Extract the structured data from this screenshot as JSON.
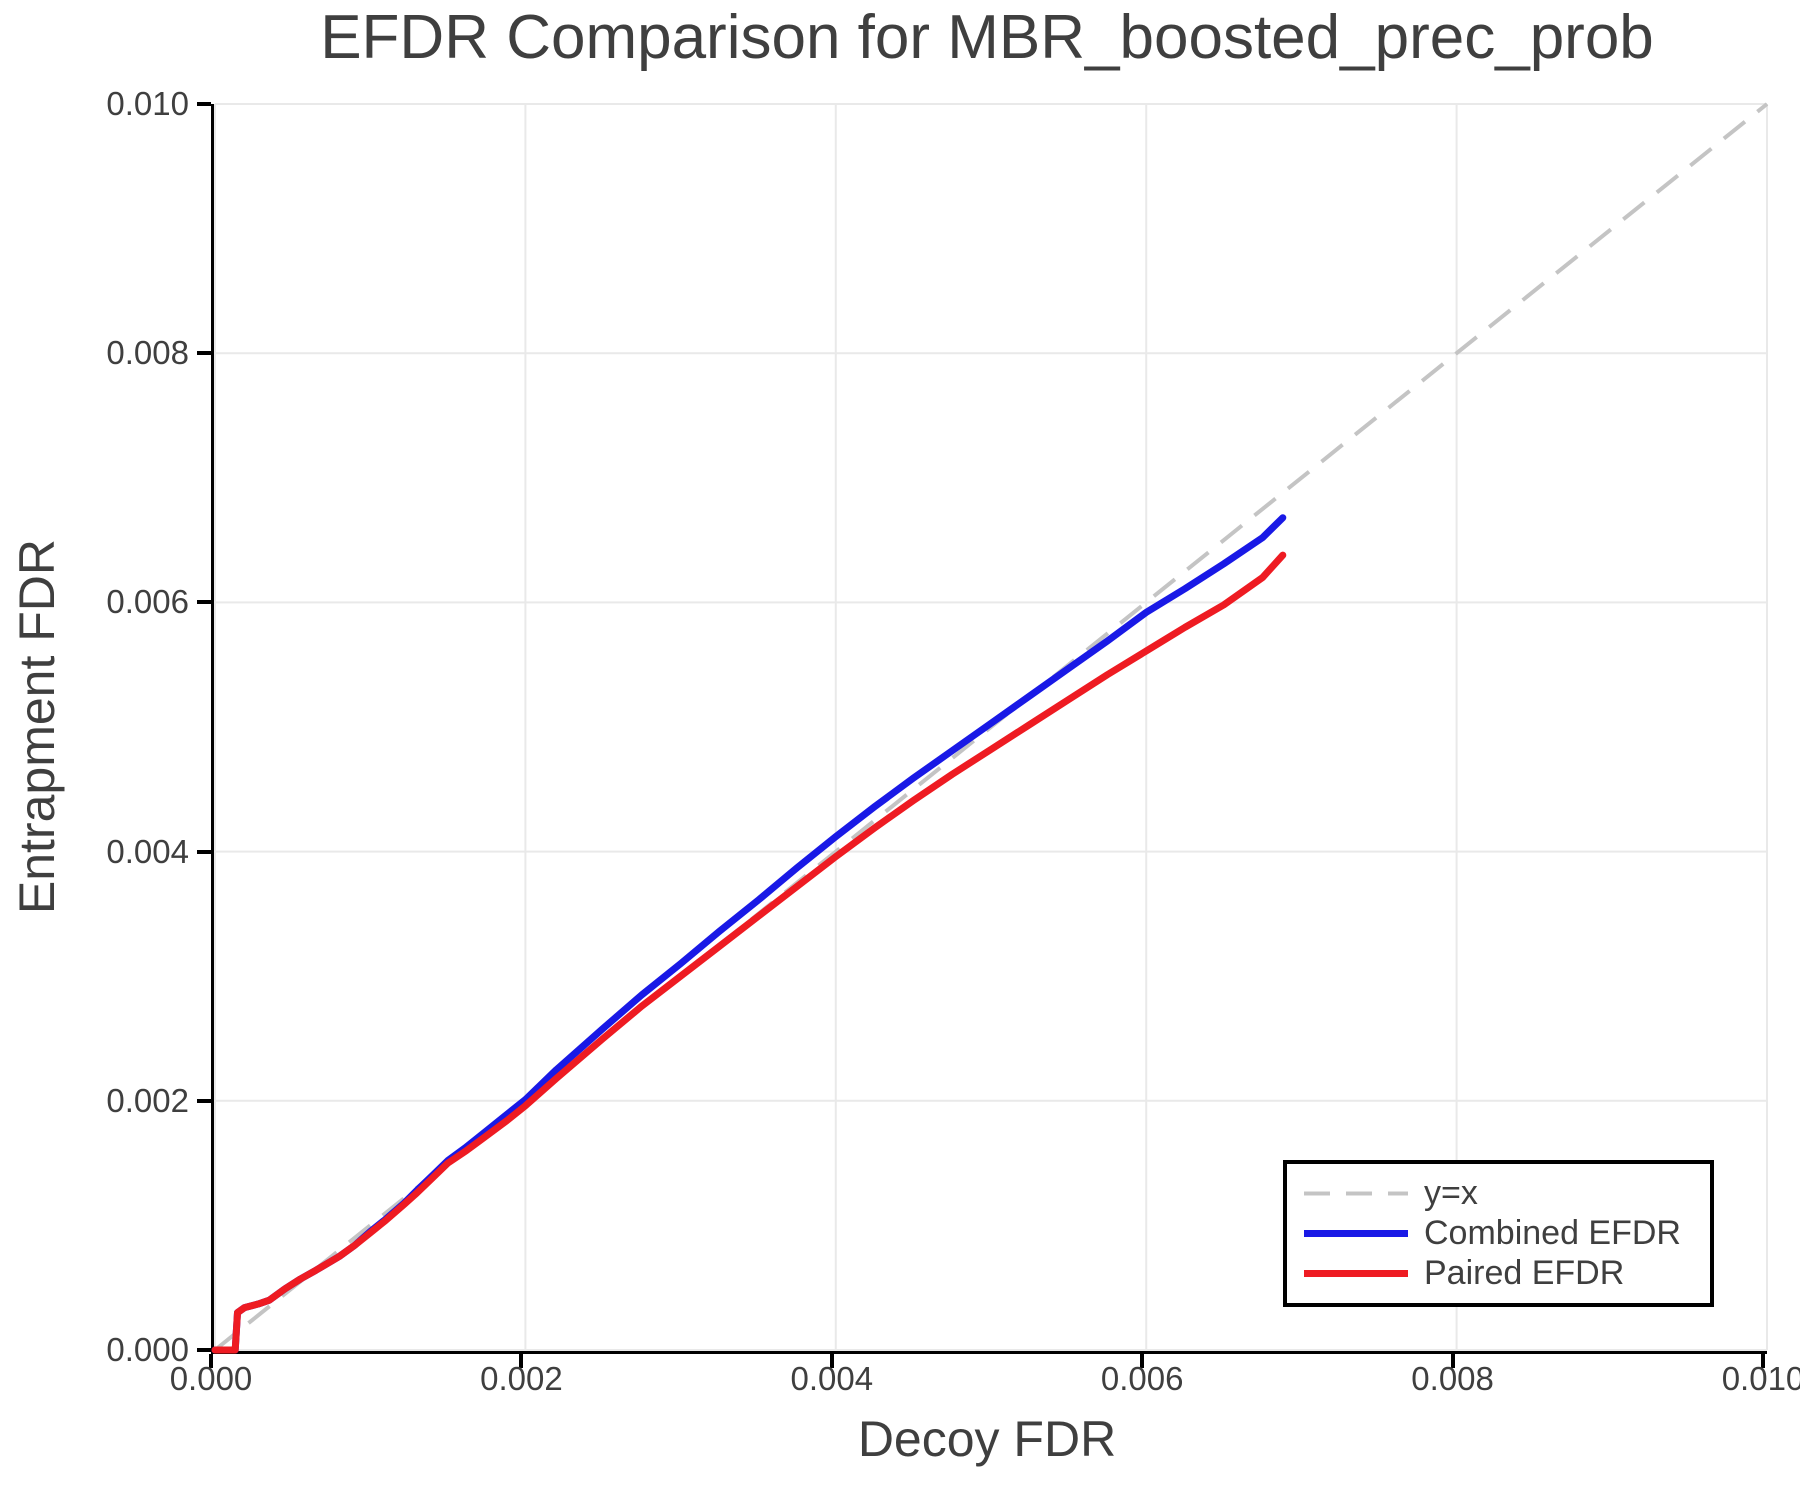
{
  "title": "EFDR Comparison for MBR_boosted_prec_prob",
  "axes": {
    "xlabel": "Decoy FDR",
    "ylabel": "Entrapment FDR",
    "xlim": [
      0.0,
      0.01
    ],
    "ylim": [
      0.0,
      0.01
    ],
    "xticks": [
      0.0,
      0.002,
      0.004,
      0.006,
      0.008,
      0.01
    ],
    "yticks": [
      0.0,
      0.002,
      0.004,
      0.006,
      0.008,
      0.01
    ],
    "xtick_labels": [
      "0.000",
      "0.002",
      "0.004",
      "0.006",
      "0.008",
      "0.010"
    ],
    "ytick_labels": [
      "0.000",
      "0.002",
      "0.004",
      "0.006",
      "0.008",
      "0.010"
    ],
    "grid": true,
    "grid_color": "#e9e9e9",
    "spine_color": "#000000"
  },
  "legend": {
    "position": "lower right",
    "items": [
      {
        "label": "y=x",
        "color": "#c4c4c4",
        "dashed": true
      },
      {
        "label": "Combined EFDR",
        "color": "#1919e6",
        "dashed": false
      },
      {
        "label": "Paired EFDR",
        "color": "#ee1b22",
        "dashed": false
      }
    ]
  },
  "chart_data": {
    "type": "line",
    "title": "EFDR Comparison for MBR_boosted_prec_prob",
    "xlabel": "Decoy FDR",
    "ylabel": "Entrapment FDR",
    "xlim": [
      0.0,
      0.01
    ],
    "ylim": [
      0.0,
      0.01
    ],
    "legend_position": "lower right",
    "grid": true,
    "reference_line": {
      "name": "y=x",
      "from": [
        0.0,
        0.0
      ],
      "to": [
        0.01,
        0.01
      ],
      "style": "dashed",
      "color": "#c4c4c4"
    },
    "series": [
      {
        "name": "Combined EFDR",
        "color": "#1919e6",
        "points": [
          [
            0.0,
            0.0
          ],
          [
            0.00013,
            0.0
          ],
          [
            0.000145,
            0.0003
          ],
          [
            0.00019,
            0.00034
          ],
          [
            0.00028,
            0.00037
          ],
          [
            0.00035,
            0.0004
          ],
          [
            0.00045,
            0.00049
          ],
          [
            0.00055,
            0.00057
          ],
          [
            0.00065,
            0.00064
          ],
          [
            0.0008,
            0.00075
          ],
          [
            0.0009,
            0.00084
          ],
          [
            0.001,
            0.00095
          ],
          [
            0.0011,
            0.00105
          ],
          [
            0.00122,
            0.00118
          ],
          [
            0.0013,
            0.00128
          ],
          [
            0.0014,
            0.0014
          ],
          [
            0.0015,
            0.00152
          ],
          [
            0.00162,
            0.00163
          ],
          [
            0.00175,
            0.00176
          ],
          [
            0.00188,
            0.00189
          ],
          [
            0.002,
            0.00201
          ],
          [
            0.0022,
            0.00225
          ],
          [
            0.0025,
            0.00258
          ],
          [
            0.00275,
            0.00285
          ],
          [
            0.003,
            0.0031
          ],
          [
            0.00325,
            0.00336
          ],
          [
            0.0035,
            0.00361
          ],
          [
            0.00375,
            0.00387
          ],
          [
            0.004,
            0.00412
          ],
          [
            0.00425,
            0.00436
          ],
          [
            0.0045,
            0.00459
          ],
          [
            0.00475,
            0.00481
          ],
          [
            0.005,
            0.00503
          ],
          [
            0.00525,
            0.00525
          ],
          [
            0.0055,
            0.00547
          ],
          [
            0.00575,
            0.00569
          ],
          [
            0.006,
            0.00592
          ],
          [
            0.00625,
            0.00611
          ],
          [
            0.0065,
            0.00631
          ],
          [
            0.00675,
            0.00652
          ],
          [
            0.00688,
            0.00668
          ]
        ]
      },
      {
        "name": "Paired EFDR",
        "color": "#ee1b22",
        "points": [
          [
            0.0,
            0.0
          ],
          [
            0.00013,
            0.0
          ],
          [
            0.000145,
            0.0003
          ],
          [
            0.00019,
            0.00034
          ],
          [
            0.00028,
            0.00037
          ],
          [
            0.00035,
            0.0004
          ],
          [
            0.00045,
            0.00049
          ],
          [
            0.00055,
            0.00057
          ],
          [
            0.00065,
            0.00064
          ],
          [
            0.0008,
            0.00075
          ],
          [
            0.0009,
            0.00084
          ],
          [
            0.001,
            0.00094
          ],
          [
            0.0011,
            0.00104
          ],
          [
            0.00122,
            0.00117
          ],
          [
            0.0013,
            0.00126
          ],
          [
            0.0014,
            0.00138
          ],
          [
            0.0015,
            0.0015
          ],
          [
            0.00162,
            0.0016
          ],
          [
            0.00175,
            0.00172
          ],
          [
            0.00188,
            0.00184
          ],
          [
            0.002,
            0.00196
          ],
          [
            0.0022,
            0.00218
          ],
          [
            0.0025,
            0.0025
          ],
          [
            0.00275,
            0.00276
          ],
          [
            0.003,
            0.003
          ],
          [
            0.00325,
            0.00324
          ],
          [
            0.0035,
            0.00348
          ],
          [
            0.00375,
            0.00372
          ],
          [
            0.004,
            0.00396
          ],
          [
            0.00425,
            0.00419
          ],
          [
            0.0045,
            0.00441
          ],
          [
            0.00475,
            0.00462
          ],
          [
            0.005,
            0.00482
          ],
          [
            0.00525,
            0.00502
          ],
          [
            0.0055,
            0.00522
          ],
          [
            0.00575,
            0.00542
          ],
          [
            0.006,
            0.00561
          ],
          [
            0.00625,
            0.0058
          ],
          [
            0.0065,
            0.00598
          ],
          [
            0.00675,
            0.0062
          ],
          [
            0.00688,
            0.00638
          ]
        ]
      }
    ]
  }
}
